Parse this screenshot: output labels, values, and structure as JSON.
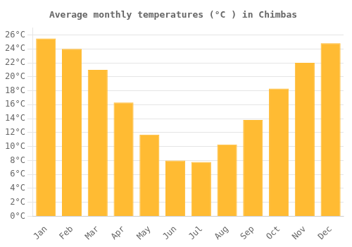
{
  "chart_data": {
    "type": "bar",
    "title": "Average monthly temperatures (°C ) in Chimbas",
    "categories": [
      "Jan",
      "Feb",
      "Mar",
      "Apr",
      "May",
      "Jun",
      "Jul",
      "Aug",
      "Sep",
      "Oct",
      "Nov",
      "Dec"
    ],
    "values": [
      25.5,
      24.0,
      21.0,
      16.3,
      11.7,
      8.0,
      7.8,
      10.3,
      13.8,
      18.3,
      22.0,
      24.8
    ],
    "color": "#FFBB33",
    "ylim": [
      0,
      27
    ],
    "yticks": [
      {
        "value": 0,
        "label": "0°C"
      },
      {
        "value": 2,
        "label": "2°C"
      },
      {
        "value": 4,
        "label": "4°C"
      },
      {
        "value": 6,
        "label": "6°C"
      },
      {
        "value": 8,
        "label": "8°C"
      },
      {
        "value": 10,
        "label": "10°C"
      },
      {
        "value": 12,
        "label": "12°C"
      },
      {
        "value": 14,
        "label": "14°C"
      },
      {
        "value": 16,
        "label": "16°C"
      },
      {
        "value": 18,
        "label": "18°C"
      },
      {
        "value": 20,
        "label": "20°C"
      },
      {
        "value": 22,
        "label": "22°C"
      },
      {
        "value": 24,
        "label": "24°C"
      },
      {
        "value": 26,
        "label": "26°C"
      }
    ],
    "grid": true
  }
}
